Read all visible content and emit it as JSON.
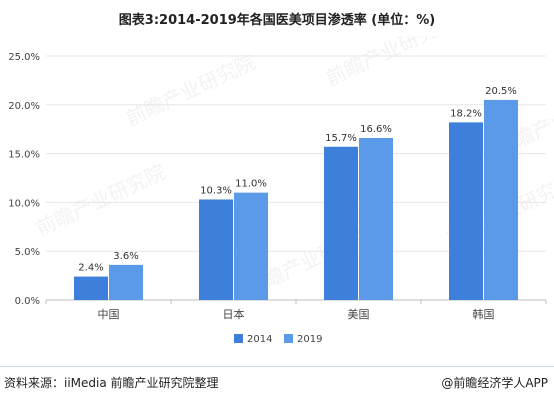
{
  "title": "图表3:2014-2019年各国医美项目渗透率 (单位：%)",
  "source": "资料来源：iiMedia 前瞻产业研究院整理",
  "brand": "@前瞻经济学人APP",
  "watermark": "前瞻产业研究院",
  "colors": {
    "series_2014": "#3e7fdc",
    "series_2019": "#5b9ae8",
    "grid": "#e6e6e6",
    "axis": "#bfbfbf"
  },
  "chart_data": {
    "type": "bar",
    "title": "图表3:2014-2019年各国医美项目渗透率 (单位：%)",
    "categories": [
      "中国",
      "日本",
      "美国",
      "韩国"
    ],
    "series": [
      {
        "name": "2014",
        "values": [
          2.4,
          10.3,
          15.7,
          18.2
        ]
      },
      {
        "name": "2019",
        "values": [
          3.6,
          11.0,
          16.6,
          20.5
        ]
      }
    ],
    "ylim": [
      0,
      25
    ],
    "yticks": [
      "0.0%",
      "5.0%",
      "10.0%",
      "15.0%",
      "20.0%",
      "25.0%"
    ],
    "grid": true,
    "legend": "bottom"
  }
}
